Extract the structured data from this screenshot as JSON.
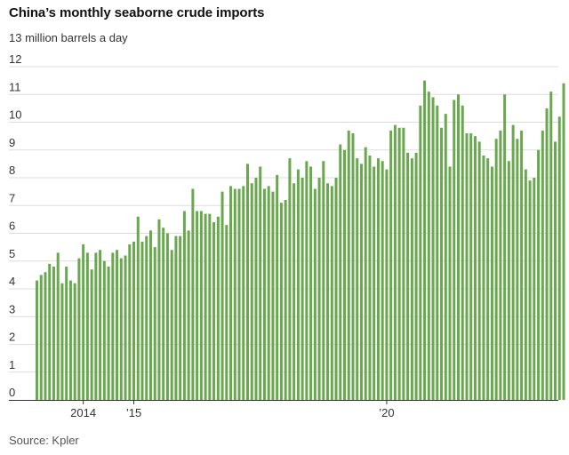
{
  "title": "China’s monthly seaborne crude imports",
  "subtitle": "13 million barrels a day",
  "source": "Source: Kpler",
  "chart_data": {
    "type": "bar",
    "title": "China’s monthly seaborne crude imports",
    "ylabel": "13 million barrels a day",
    "ylim": [
      0,
      13
    ],
    "yticks": [
      "0",
      "1",
      "2",
      "3",
      "4",
      "5",
      "6",
      "7",
      "8",
      "9",
      "10",
      "11",
      "12"
    ],
    "xticks": [
      {
        "label": "2014",
        "index": 11
      },
      {
        "label": "’15",
        "index": 23
      },
      {
        "label": "’20",
        "index": 83
      }
    ],
    "bar_color": "#6aa84f",
    "grid_color": "#dddddd",
    "values": [
      4.3,
      4.5,
      4.6,
      4.9,
      4.8,
      5.3,
      4.2,
      4.8,
      4.3,
      4.2,
      5.1,
      5.6,
      5.3,
      4.7,
      5.3,
      5.4,
      5.0,
      4.8,
      5.3,
      5.4,
      5.1,
      5.2,
      5.6,
      5.7,
      6.6,
      5.7,
      5.9,
      6.1,
      5.5,
      6.5,
      6.2,
      6.0,
      5.4,
      5.9,
      5.9,
      6.8,
      6.1,
      7.6,
      6.8,
      6.8,
      6.7,
      6.7,
      6.4,
      6.6,
      7.5,
      6.3,
      7.7,
      7.6,
      7.6,
      7.7,
      8.5,
      7.8,
      8.0,
      8.4,
      7.6,
      7.7,
      7.5,
      8.1,
      7.1,
      7.2,
      8.7,
      7.8,
      8.3,
      8.0,
      8.6,
      8.4,
      7.6,
      8.0,
      8.6,
      7.8,
      7.7,
      8.0,
      9.2,
      9.0,
      9.7,
      9.6,
      8.7,
      8.5,
      9.1,
      8.8,
      8.4,
      8.7,
      8.6,
      8.3,
      9.7,
      9.9,
      9.8,
      9.8,
      8.9,
      8.7,
      8.9,
      10.6,
      11.5,
      11.1,
      10.9,
      10.6,
      9.8,
      10.3,
      8.4,
      10.8,
      11.0,
      10.6,
      9.6,
      9.6,
      9.5,
      9.3,
      8.8,
      8.7,
      8.4,
      9.4,
      9.7,
      11.0,
      8.6,
      9.9,
      9.4,
      9.7,
      8.3,
      7.9,
      8.0,
      9.0,
      9.7,
      10.5,
      11.1,
      9.3,
      10.2,
      11.4
    ]
  }
}
